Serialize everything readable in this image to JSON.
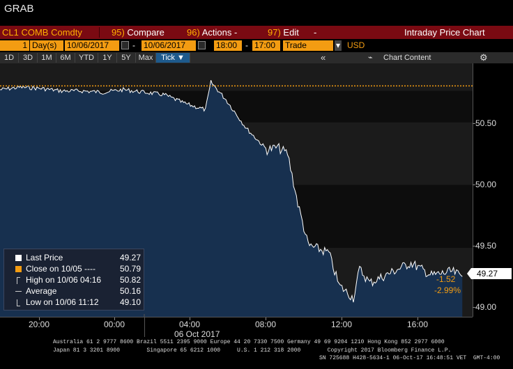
{
  "app_title": "GRAB",
  "menu": {
    "ticker": "CL1 COMB Comdty",
    "compare_num": "95)",
    "compare_label": "Compare",
    "actions_num": "96)",
    "actions_label": "Actions",
    "edit_num": "97)",
    "edit_label": "Edit",
    "dropdown_glyph": "-",
    "chart_title": "Intraday Price Chart"
  },
  "date_bar": {
    "period_count": "1",
    "period_unit": "Day(s)",
    "start_date": "10/06/2017",
    "end_date": "10/06/2017",
    "date_sep": "-",
    "start_time": "18:00",
    "time_sep": "-",
    "end_time": "17:00",
    "data_type": "Trade",
    "currency": "USD"
  },
  "range_bar": {
    "buttons": [
      "1D",
      "3D",
      "1M",
      "6M",
      "YTD",
      "1Y",
      "5Y",
      "Max"
    ],
    "tick_button": "Tick ▼",
    "collapse": "«",
    "chart_content": "Chart Content",
    "settings_icon": "gear-icon"
  },
  "y_axis": {
    "ticks": [
      "50.50",
      "50.00",
      "49.50",
      "49.00"
    ],
    "last_value": "49.27",
    "net_change": "-1.52",
    "pct_change": "-2.99%"
  },
  "x_axis": {
    "ticks": [
      "20:00",
      "00:00",
      "04:00",
      "08:00",
      "12:00",
      "16:00"
    ],
    "date_label": "06 Oct 2017"
  },
  "legend": {
    "rows": [
      {
        "label": "Last Price",
        "value": "49.27"
      },
      {
        "label": "Close on 10/05 ----",
        "value": "50.79"
      },
      {
        "label": "High on 10/06 04:16",
        "value": "50.82"
      },
      {
        "label": "Average",
        "value": "50.16"
      },
      {
        "label": "Low on 10/06 11:12",
        "value": "49.10"
      }
    ]
  },
  "colors": {
    "accent_orange": "#f39c12",
    "menu_red": "#7a0a12",
    "area_fill": "#17304f",
    "line_white": "#ffffff"
  },
  "chart_data": {
    "type": "area",
    "title": "",
    "y_range": [
      48.95,
      50.97
    ],
    "x_range": [
      "18:00",
      "17:00"
    ],
    "close_prev": 50.79,
    "grid": "horizontal bands",
    "x": [
      "18:00",
      "19:00",
      "20:00",
      "21:00",
      "22:00",
      "23:00",
      "00:00",
      "01:00",
      "02:00",
      "03:00",
      "04:00",
      "04:16",
      "05:00",
      "06:00",
      "07:00",
      "07:30",
      "08:00",
      "08:30",
      "09:00",
      "10:00",
      "10:30",
      "11:12",
      "11:30",
      "12:00",
      "13:00",
      "14:00",
      "15:00",
      "16:00",
      "16:30"
    ],
    "values": [
      50.76,
      50.78,
      50.77,
      50.75,
      50.75,
      50.74,
      50.76,
      50.74,
      50.72,
      50.65,
      50.6,
      50.82,
      50.68,
      50.45,
      50.28,
      50.3,
      50.25,
      49.85,
      49.52,
      49.46,
      49.2,
      49.1,
      49.33,
      49.22,
      49.3,
      49.38,
      49.28,
      49.31,
      49.27
    ],
    "footer": {
      "line1": "Australia 61 2 9777 8600 Brazil 5511 2395 9000 Europe 44 20 7330 7500 Germany 49 69 9204 1210 Hong Kong 852 2977 6000",
      "line2": "Japan 81 3 3201 8900        Singapore 65 6212 1000     U.S. 1 212 318 2000        Copyright 2017 Bloomberg Finance L.P.",
      "line3": "SN 725688 H428-5634-1 06-Oct-17 16:48:51 VET  GMT-4:00"
    }
  }
}
